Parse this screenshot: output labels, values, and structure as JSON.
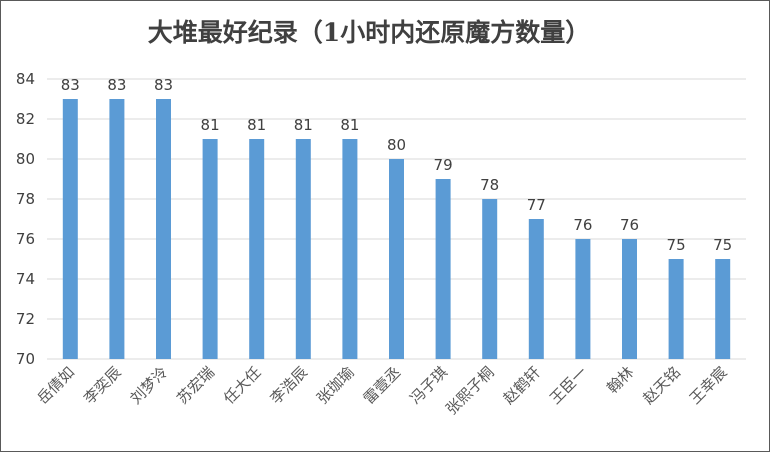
{
  "chart_data": {
    "type": "bar",
    "title": "大堆最好纪录（1小时内还原魔方数量）",
    "categories": [
      "岳倩如",
      "李奕辰",
      "刘梦泠",
      "苏宏瑞",
      "任大任",
      "李浩辰",
      "张珈瑜",
      "雷壹丞",
      "冯子琪",
      "张熙子桐",
      "赵鹤轩",
      "王臣一",
      "翰林",
      "赵天铭",
      "王幸宸"
    ],
    "values": [
      83,
      83,
      83,
      81,
      81,
      81,
      81,
      80,
      79,
      78,
      77,
      76,
      76,
      75,
      75
    ],
    "ylim": [
      70,
      84
    ],
    "yticks": [
      70,
      72,
      74,
      76,
      78,
      80,
      82,
      84
    ],
    "grid": true,
    "bar_color": "#5b9bd5"
  }
}
